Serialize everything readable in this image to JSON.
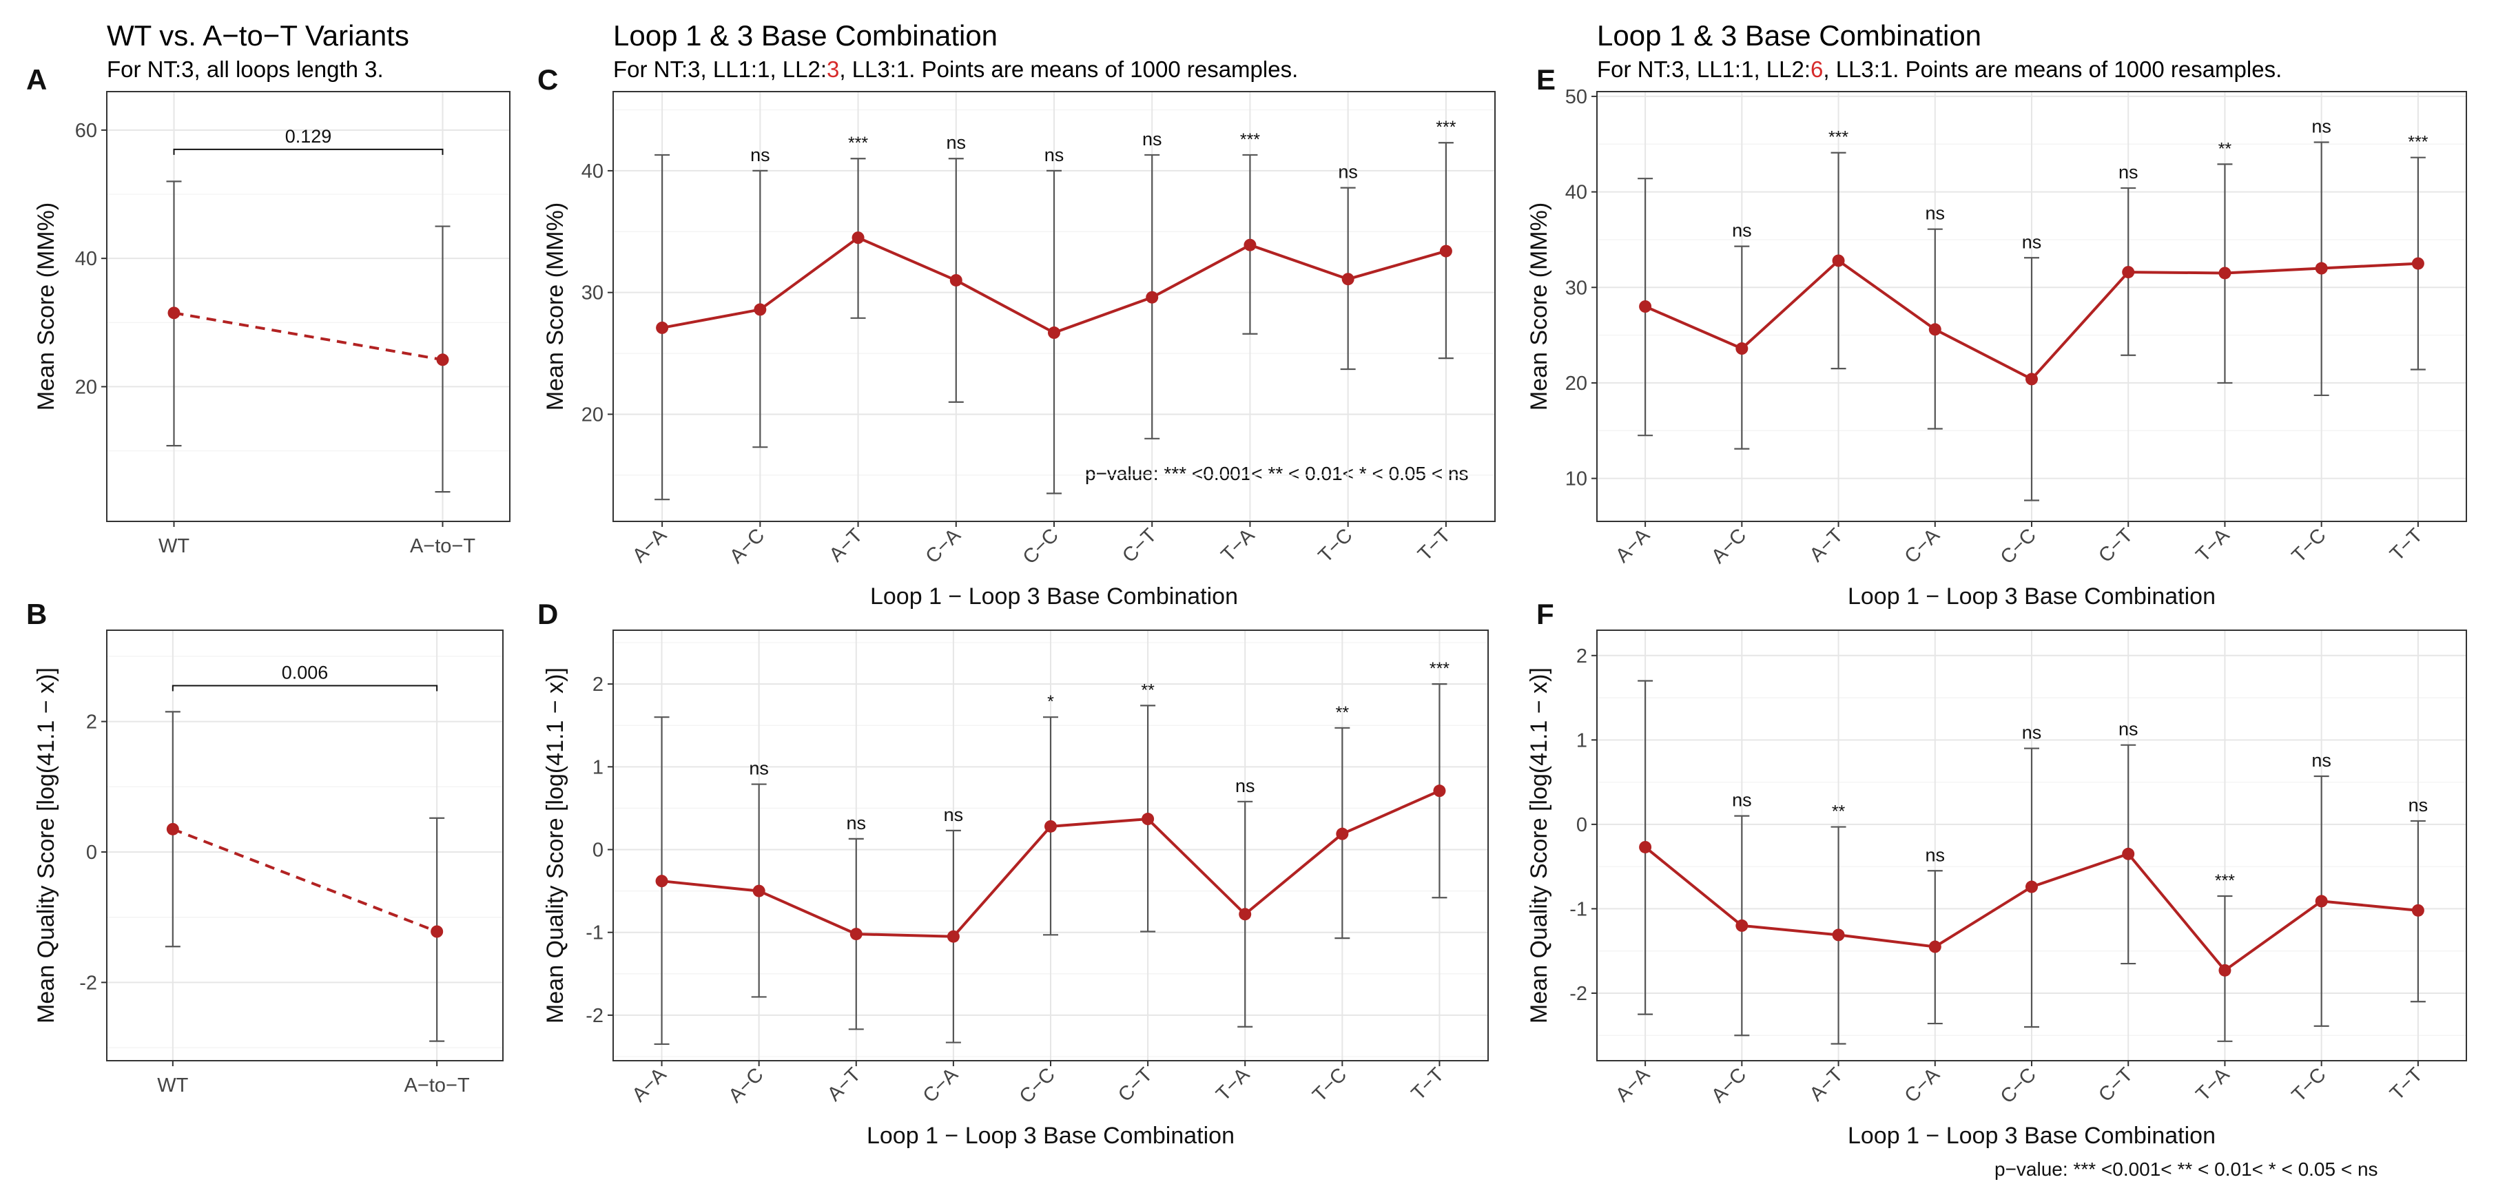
{
  "headers": {
    "a": {
      "title": "WT vs. A−to−T Variants",
      "subtitle": "For NT:3, all loops length 3."
    },
    "c": {
      "title": "Loop 1 & 3 Base Combination",
      "sub_pre": "For NT:3, LL1:1, LL2:",
      "sub_hl": "3",
      "sub_post": ", LL3:1. Points are means of 1000 resamples."
    },
    "e": {
      "title": "Loop 1 & 3 Base Combination",
      "sub_pre": "For NT:3, LL1:1, LL2:",
      "sub_hl": "6",
      "sub_post": ", LL3:1. Points are means of 1000 resamples."
    }
  },
  "panel_labels": {
    "A": "A",
    "B": "B",
    "C": "C",
    "D": "D",
    "E": "E",
    "F": "F"
  },
  "footnotes": {
    "c": "p−value: *** <0.001< ** < 0.01< * < 0.05 < ns",
    "bottom": "p−value: *** <0.001< ** < 0.01< * < 0.05 < ns"
  },
  "colors": {
    "series": "#b22222",
    "error_bar": "#555555",
    "grid": "#ebebeb",
    "frame": "#333333"
  },
  "chart_data": [
    {
      "id": "A",
      "type": "line",
      "categories": [
        "WT",
        "A−to−T"
      ],
      "values": [
        31.5,
        24.2
      ],
      "err_low": [
        10.8,
        3.6
      ],
      "err_high": [
        52.0,
        45.0
      ],
      "line_style": "dashed",
      "ylabel": "Mean Score (MM%)",
      "xlabel": "",
      "yticks": [
        20,
        40,
        60
      ],
      "ylim": [
        -1,
        66
      ],
      "bracket": {
        "label": "0.129",
        "y": 57
      }
    },
    {
      "id": "B",
      "type": "line",
      "categories": [
        "WT",
        "A−to−T"
      ],
      "values": [
        0.35,
        -1.22
      ],
      "err_low": [
        -1.45,
        -2.9
      ],
      "err_high": [
        2.15,
        0.52
      ],
      "line_style": "dashed",
      "ylabel": "Mean Quality Score [log(41.1 − x)]",
      "xlabel": "",
      "yticks": [
        -2,
        0,
        2
      ],
      "ylim": [
        -3.2,
        3.4
      ],
      "bracket": {
        "label": "0.006",
        "y": 2.55
      }
    },
    {
      "id": "C",
      "type": "line",
      "categories": [
        "A−A",
        "A−C",
        "A−T",
        "C−A",
        "C−C",
        "C−T",
        "T−A",
        "T−C",
        "T−T"
      ],
      "values": [
        27.1,
        28.6,
        34.5,
        31.0,
        26.7,
        29.6,
        33.9,
        31.1,
        33.4
      ],
      "err_low": [
        13.0,
        17.3,
        27.9,
        21.0,
        13.5,
        18.0,
        26.6,
        23.7,
        24.6
      ],
      "err_high": [
        41.3,
        40.0,
        41.0,
        41.0,
        40.0,
        41.3,
        41.3,
        38.6,
        42.3
      ],
      "sig": [
        "",
        "ns",
        "***",
        "ns",
        "ns",
        "ns",
        "***",
        "ns",
        "***"
      ],
      "ylabel": "Mean Score (MM%)",
      "xlabel": "Loop 1 − Loop 3 Base Combination",
      "yticks": [
        20,
        30,
        40
      ],
      "ylim": [
        11.2,
        46.5
      ]
    },
    {
      "id": "D",
      "type": "line",
      "categories": [
        "A−A",
        "A−C",
        "A−T",
        "C−A",
        "C−C",
        "C−T",
        "T−A",
        "T−C",
        "T−T"
      ],
      "values": [
        -0.38,
        -0.5,
        -1.02,
        -1.05,
        0.28,
        0.37,
        -0.78,
        0.19,
        0.71
      ],
      "err_low": [
        -2.35,
        -1.78,
        -2.17,
        -2.33,
        -1.03,
        -0.99,
        -2.14,
        -1.07,
        -0.58
      ],
      "err_high": [
        1.6,
        0.79,
        0.13,
        0.23,
        1.6,
        1.74,
        0.58,
        1.47,
        2.0
      ],
      "sig": [
        "",
        "ns",
        "ns",
        "ns",
        "*",
        "**",
        "ns",
        "**",
        "***"
      ],
      "ylabel": "Mean Quality Score [log(41.1 − x)]",
      "xlabel": "Loop 1 − Loop 3 Base Combination",
      "yticks": [
        -2,
        -1,
        0,
        1,
        2
      ],
      "ylim": [
        -2.55,
        2.65
      ]
    },
    {
      "id": "E",
      "type": "line",
      "categories": [
        "A−A",
        "A−C",
        "A−T",
        "C−A",
        "C−C",
        "C−T",
        "T−A",
        "T−C",
        "T−T"
      ],
      "values": [
        28.0,
        23.6,
        32.8,
        25.6,
        20.4,
        31.6,
        31.5,
        32.0,
        32.5
      ],
      "err_low": [
        14.5,
        13.1,
        21.5,
        15.2,
        7.7,
        22.9,
        20.0,
        18.7,
        21.4
      ],
      "err_high": [
        41.4,
        34.3,
        44.1,
        36.1,
        33.1,
        40.4,
        42.9,
        45.2,
        43.6
      ],
      "sig": [
        "",
        "ns",
        "***",
        "ns",
        "ns",
        "ns",
        "**",
        "ns",
        "***"
      ],
      "ylabel": "Mean Score (MM%)",
      "xlabel": "Loop 1 − Loop 3 Base Combination",
      "yticks": [
        10,
        20,
        30,
        40,
        50
      ],
      "ylim": [
        5.5,
        50.5
      ]
    },
    {
      "id": "F",
      "type": "line",
      "categories": [
        "A−A",
        "A−C",
        "A−T",
        "C−A",
        "C−C",
        "C−T",
        "T−A",
        "T−C",
        "T−T"
      ],
      "values": [
        -0.27,
        -1.2,
        -1.31,
        -1.45,
        -0.74,
        -0.35,
        -1.73,
        -0.91,
        -1.02
      ],
      "err_low": [
        -2.25,
        -2.5,
        -2.6,
        -2.36,
        -2.4,
        -1.65,
        -2.57,
        -2.39,
        -2.1
      ],
      "err_high": [
        1.7,
        0.1,
        -0.03,
        -0.55,
        0.9,
        0.94,
        -0.85,
        0.57,
        0.04
      ],
      "sig": [
        "",
        "ns",
        "**",
        "ns",
        "ns",
        "ns",
        "***",
        "ns",
        "ns"
      ],
      "ylabel": "Mean Quality Score [log(41.1 − x)]",
      "xlabel": "Loop 1 − Loop 3 Base Combination",
      "yticks": [
        -2,
        -1,
        0,
        1,
        2
      ],
      "ylim": [
        -2.8,
        2.3
      ]
    }
  ]
}
